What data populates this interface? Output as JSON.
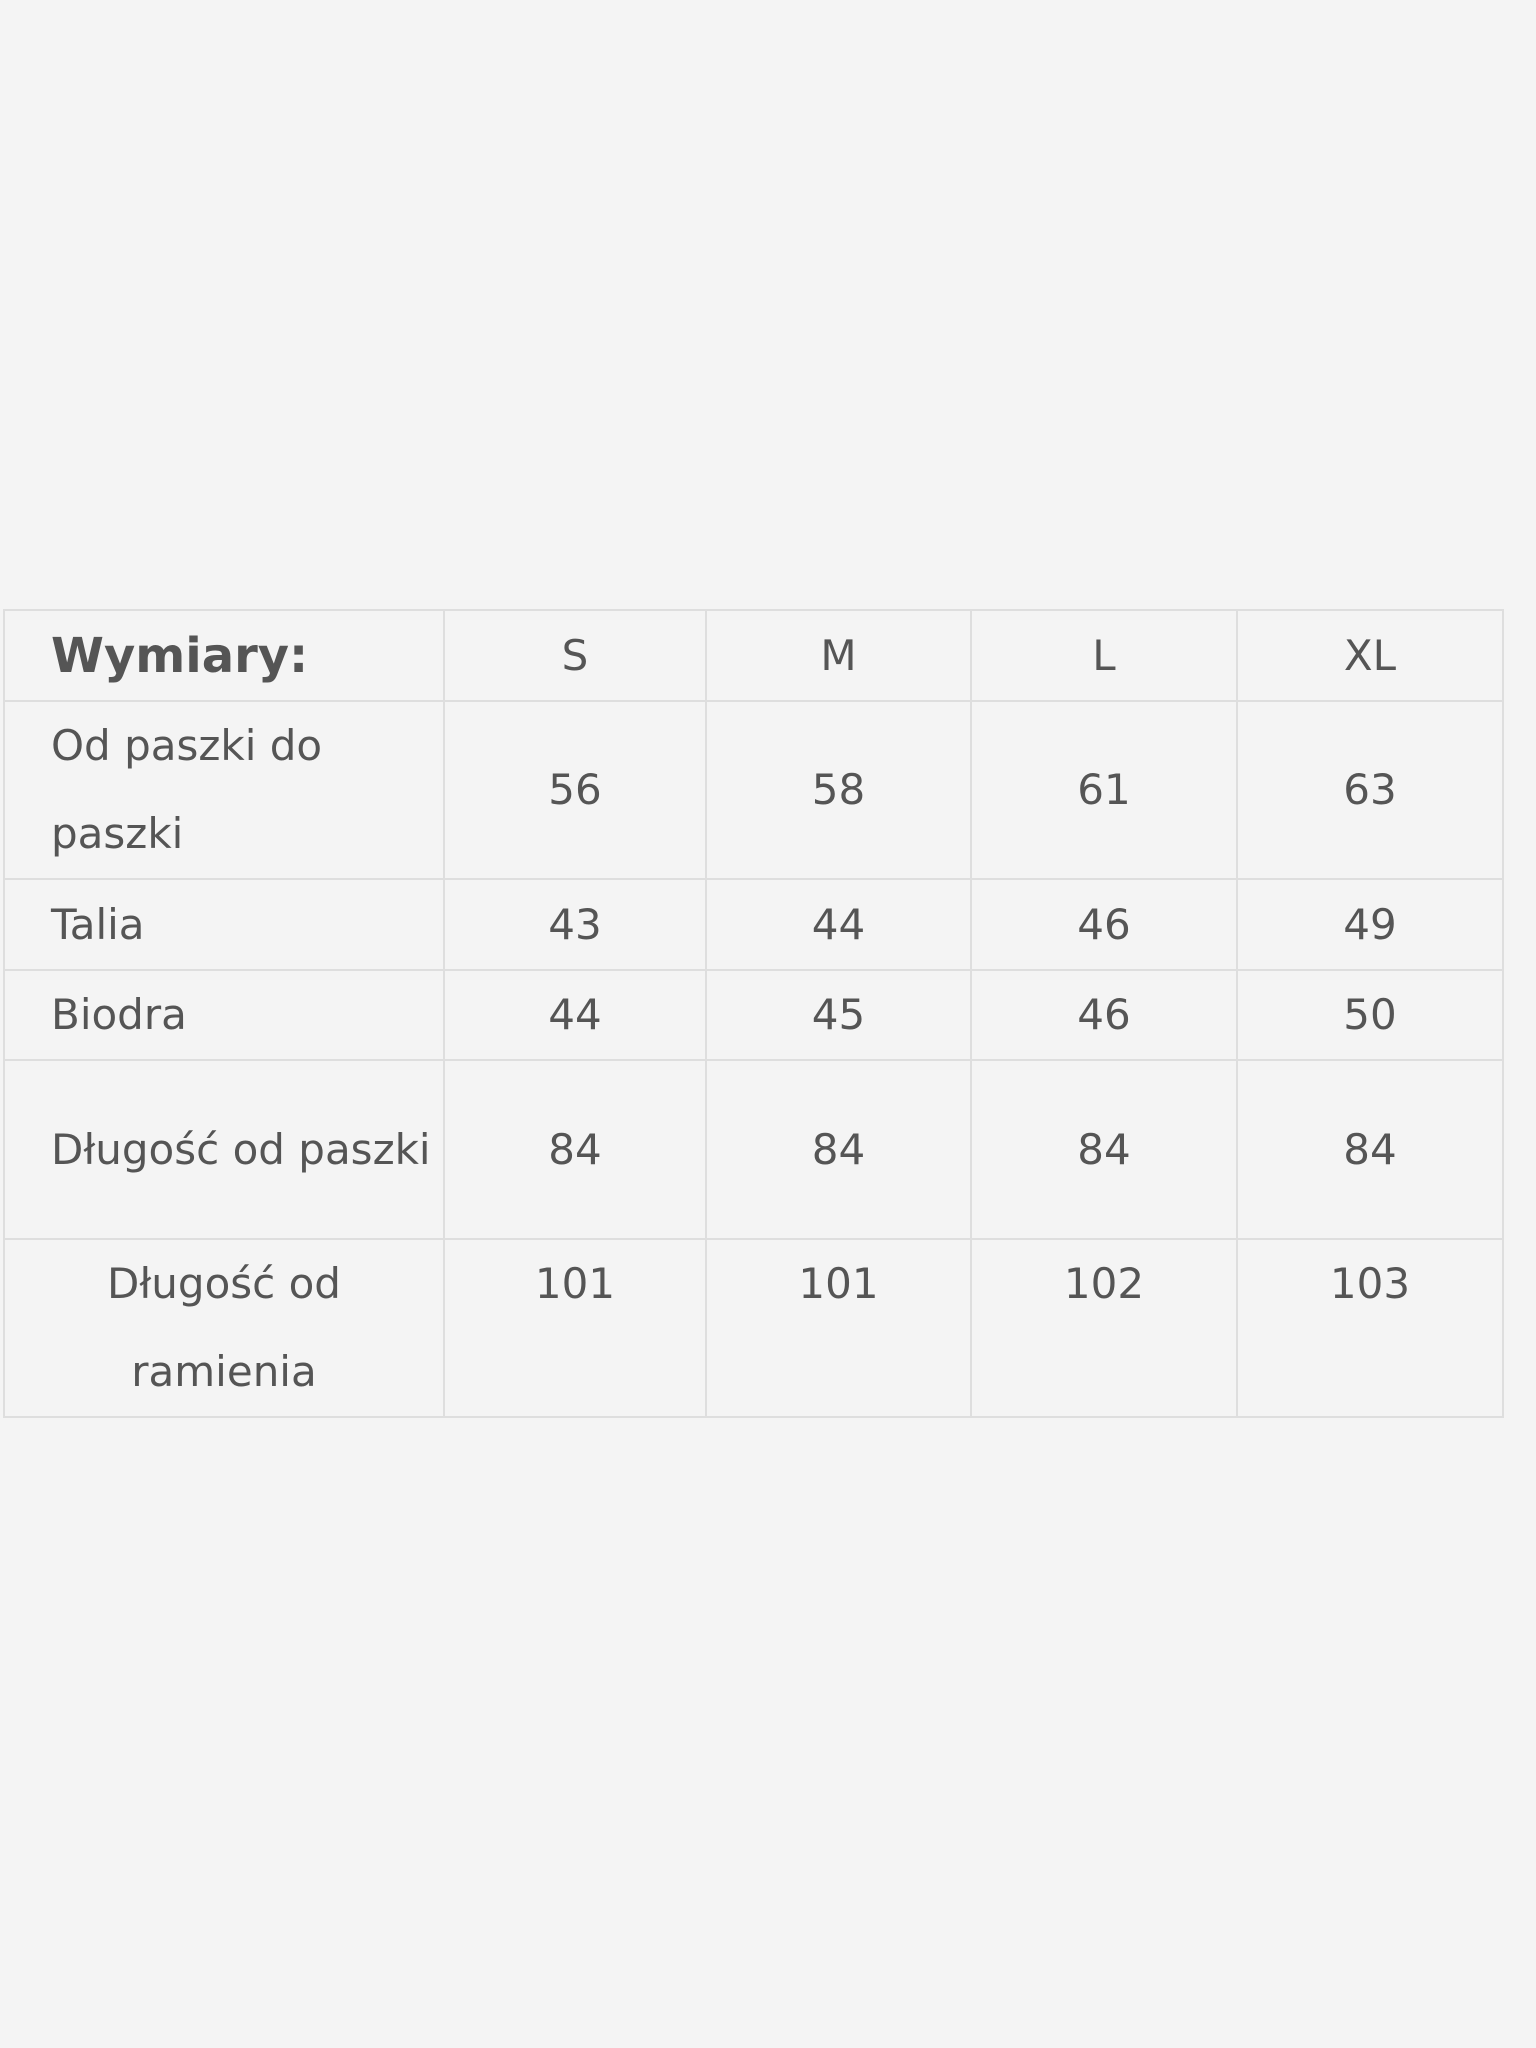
{
  "table": {
    "header": [
      "Wymiary:",
      "S",
      "M",
      "L",
      "XL"
    ],
    "rows": [
      {
        "label": "Od paszki do paszki",
        "values": [
          "56",
          "58",
          "61",
          "63"
        ]
      },
      {
        "label": "Talia",
        "values": [
          "43",
          "44",
          "46",
          "49"
        ]
      },
      {
        "label": "Biodra",
        "values": [
          "44",
          "45",
          "46",
          "50"
        ]
      },
      {
        "label": "Długość od paszki",
        "values": [
          "84",
          "84",
          "84",
          "84"
        ]
      },
      {
        "label": "Długość od ramienia",
        "values": [
          "101",
          "101",
          "102",
          "103"
        ]
      }
    ]
  }
}
